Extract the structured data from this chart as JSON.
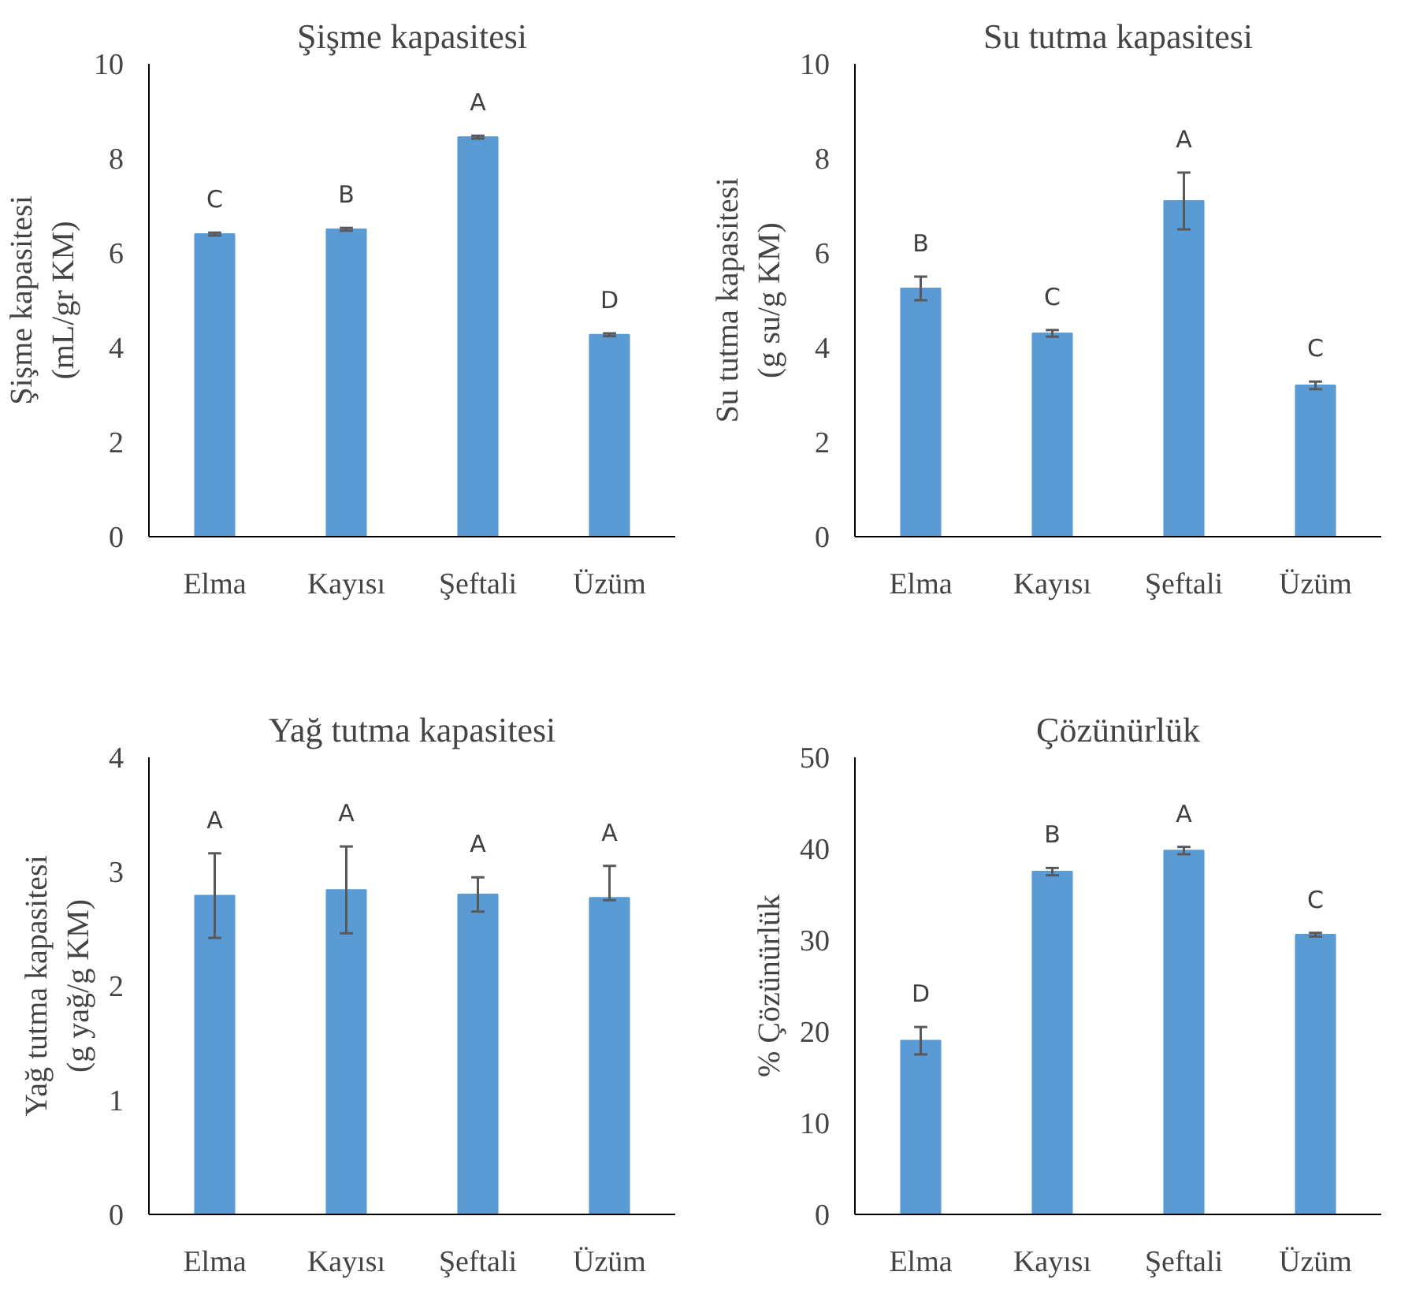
{
  "chart_data": [
    {
      "type": "bar",
      "title": "Şişme kapasitesi",
      "ylabel": "Şişme kapasitesi\n(mL/gr KM)",
      "categories": [
        "Elma",
        "Kayısı",
        "Şeftali",
        "Üzüm"
      ],
      "values": [
        6.4,
        6.5,
        8.45,
        4.27
      ],
      "errors": [
        0.03,
        0.03,
        0.03,
        0.03
      ],
      "color": "#5b9bd5",
      "ylim": [
        0,
        10
      ],
      "yticks": [
        0,
        2,
        4,
        6,
        8,
        10
      ],
      "grid": false,
      "annotations": [
        "C",
        "B",
        "A",
        "D"
      ]
    },
    {
      "type": "bar",
      "title": "Su tutma kapasitesi",
      "ylabel": "Su tutma kapasitesi\n(g su/g KM)",
      "categories": [
        "Elma",
        "Kayısı",
        "Şeftali",
        "Üzüm"
      ],
      "values": [
        5.25,
        4.3,
        7.1,
        3.2
      ],
      "errors": [
        0.25,
        0.07,
        0.6,
        0.08
      ],
      "color": "#5b9bd5",
      "ylim": [
        0,
        10
      ],
      "yticks": [
        0,
        2,
        4,
        6,
        8,
        10
      ],
      "grid": false,
      "annotations": [
        "B",
        "C",
        "A",
        "C"
      ]
    },
    {
      "type": "bar",
      "title": "Yağ tutma kapasitesi",
      "ylabel": "Yağ tutma kapasitesi\n(g yağ/g KM)",
      "categories": [
        "Elma",
        "Kayısı",
        "Şeftali",
        "Üzüm"
      ],
      "values": [
        2.79,
        2.84,
        2.8,
        2.77
      ],
      "errors": [
        0.37,
        0.38,
        0.15,
        [
          2.75,
          3.05
        ]
      ],
      "color": "#5b9bd5",
      "ylim": [
        0,
        4
      ],
      "yticks": [
        0,
        1,
        2,
        3,
        4
      ],
      "grid": false,
      "annotations": [
        "A",
        "A",
        "A",
        "A"
      ]
    },
    {
      "type": "bar",
      "title": "Çözünürlük",
      "ylabel": "% Çözünürlük",
      "categories": [
        "Elma",
        "Kayısı",
        "Şeftali",
        "Üzüm"
      ],
      "values": [
        19,
        37.5,
        39.8,
        30.6
      ],
      "errors": [
        1.5,
        0.4,
        0.4,
        0.2
      ],
      "color": "#5b9bd5",
      "ylim": [
        0,
        50
      ],
      "yticks": [
        0,
        10,
        20,
        30,
        40,
        50
      ],
      "grid": false,
      "annotations": [
        "D",
        "B",
        "A",
        "C"
      ]
    }
  ]
}
